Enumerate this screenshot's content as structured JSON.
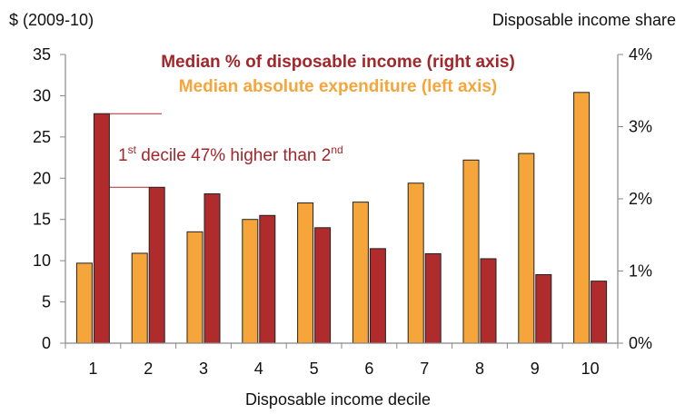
{
  "chart_data": {
    "type": "bar",
    "categories": [
      "1",
      "2",
      "3",
      "4",
      "5",
      "6",
      "7",
      "8",
      "9",
      "10"
    ],
    "series": [
      {
        "name": "Median absolute expenditure (left axis)",
        "axis": "left",
        "color": "#F5A53A",
        "values": [
          9.7,
          10.9,
          13.5,
          15.0,
          17.0,
          17.1,
          19.4,
          22.2,
          23.0,
          30.4
        ]
      },
      {
        "name": "Median % of disposable income (right axis)",
        "axis": "right",
        "color": "#B02B2B",
        "values": [
          3.18,
          2.16,
          2.07,
          1.77,
          1.6,
          1.31,
          1.24,
          1.17,
          0.95,
          0.86
        ]
      }
    ],
    "left_axis": {
      "label": "$ (2009-10)",
      "ylim": [
        0,
        35
      ],
      "ticks": [
        "0",
        "5",
        "10",
        "15",
        "20",
        "25",
        "30",
        "35"
      ]
    },
    "right_axis": {
      "label": "Disposable income share",
      "ylim": [
        0,
        4
      ],
      "ticks": [
        "0%",
        "1%",
        "2%",
        "3%",
        "4%"
      ]
    },
    "xlabel": "Disposable income decile",
    "legend": {
      "line1": "Median % of disposable income (right axis)",
      "line1_color": "#A3262A",
      "line2": "Median absolute expenditure (left axis)",
      "line2_color": "#F5A53A",
      "placement": "top-center"
    },
    "annotation": {
      "prefix": "1",
      "sup1": "st",
      "middle": " decile 47% higher than 2",
      "sup2": "nd",
      "color": "#A3262A"
    },
    "grid": false
  }
}
